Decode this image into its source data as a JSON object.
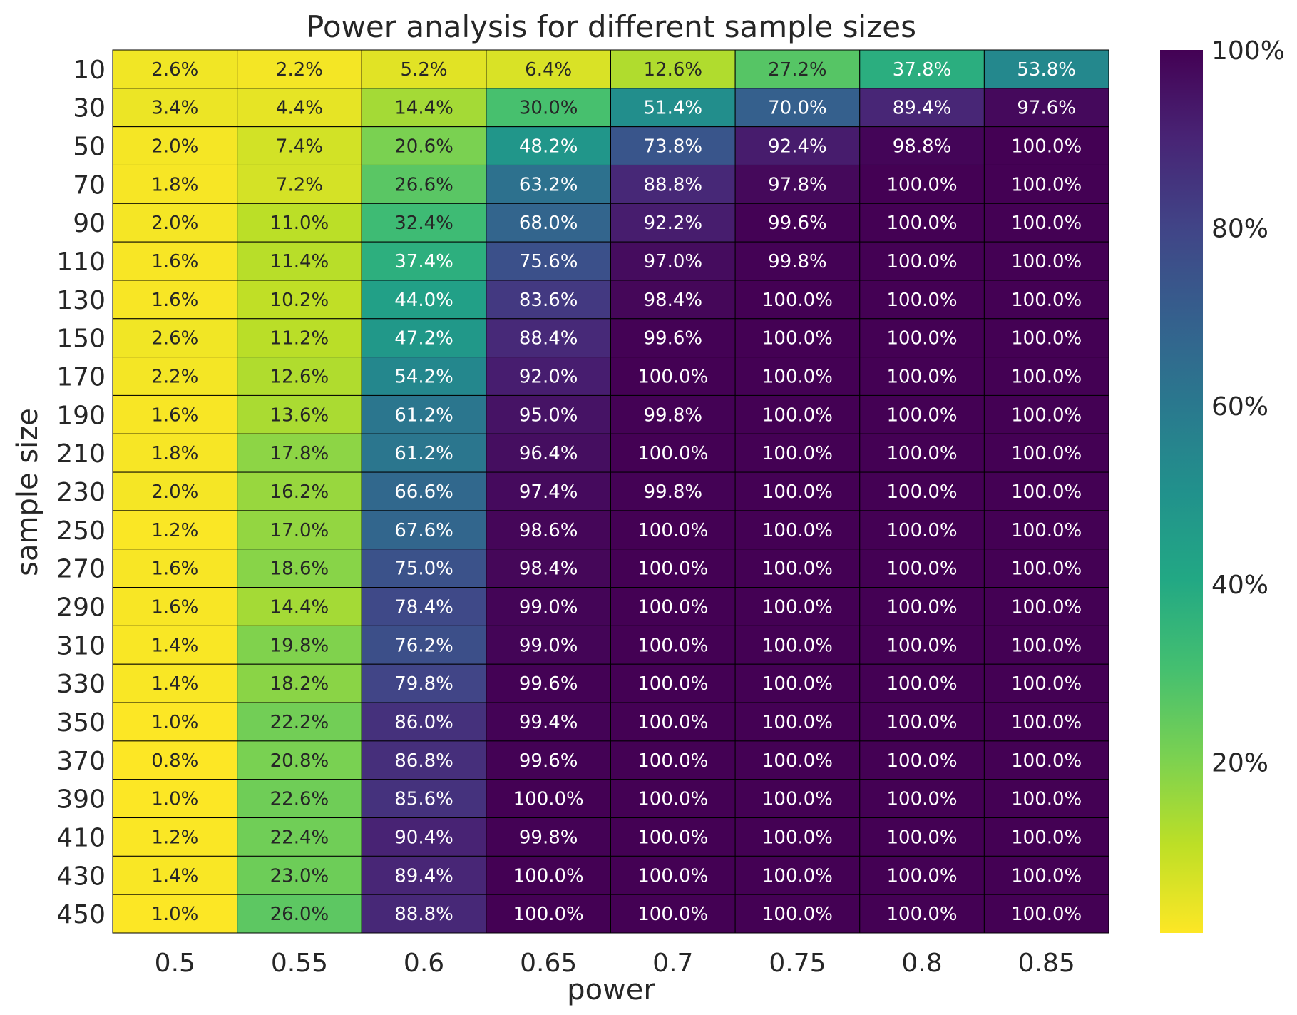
{
  "chart_data": {
    "type": "heatmap",
    "title": "Power analysis for different sample sizes",
    "xlabel": "power",
    "ylabel": "sample size",
    "x": [
      "0.5",
      "0.55",
      "0.6",
      "0.65",
      "0.7",
      "0.75",
      "0.8",
      "0.85"
    ],
    "y": [
      "10",
      "30",
      "50",
      "70",
      "90",
      "110",
      "130",
      "150",
      "170",
      "190",
      "210",
      "230",
      "250",
      "270",
      "290",
      "310",
      "330",
      "350",
      "370",
      "390",
      "410",
      "430",
      "450"
    ],
    "values": [
      [
        2.6,
        2.2,
        5.2,
        6.4,
        12.6,
        27.2,
        37.8,
        53.8
      ],
      [
        3.4,
        4.4,
        14.4,
        30.0,
        51.4,
        70.0,
        89.4,
        97.6
      ],
      [
        2.0,
        7.4,
        20.6,
        48.2,
        73.8,
        92.4,
        98.8,
        100.0
      ],
      [
        1.8,
        7.2,
        26.6,
        63.2,
        88.8,
        97.8,
        100.0,
        100.0
      ],
      [
        2.0,
        11.0,
        32.4,
        68.0,
        92.2,
        99.6,
        100.0,
        100.0
      ],
      [
        1.6,
        11.4,
        37.4,
        75.6,
        97.0,
        99.8,
        100.0,
        100.0
      ],
      [
        1.6,
        10.2,
        44.0,
        83.6,
        98.4,
        100.0,
        100.0,
        100.0
      ],
      [
        2.6,
        11.2,
        47.2,
        88.4,
        99.6,
        100.0,
        100.0,
        100.0
      ],
      [
        2.2,
        12.6,
        54.2,
        92.0,
        100.0,
        100.0,
        100.0,
        100.0
      ],
      [
        1.6,
        13.6,
        61.2,
        95.0,
        99.8,
        100.0,
        100.0,
        100.0
      ],
      [
        1.8,
        17.8,
        61.2,
        96.4,
        100.0,
        100.0,
        100.0,
        100.0
      ],
      [
        2.0,
        16.2,
        66.6,
        97.4,
        99.8,
        100.0,
        100.0,
        100.0
      ],
      [
        1.2,
        17.0,
        67.6,
        98.6,
        100.0,
        100.0,
        100.0,
        100.0
      ],
      [
        1.6,
        18.6,
        75.0,
        98.4,
        100.0,
        100.0,
        100.0,
        100.0
      ],
      [
        1.6,
        14.4,
        78.4,
        99.0,
        100.0,
        100.0,
        100.0,
        100.0
      ],
      [
        1.4,
        19.8,
        76.2,
        99.0,
        100.0,
        100.0,
        100.0,
        100.0
      ],
      [
        1.4,
        18.2,
        79.8,
        99.6,
        100.0,
        100.0,
        100.0,
        100.0
      ],
      [
        1.0,
        22.2,
        86.0,
        99.4,
        100.0,
        100.0,
        100.0,
        100.0
      ],
      [
        0.8,
        20.8,
        86.8,
        99.6,
        100.0,
        100.0,
        100.0,
        100.0
      ],
      [
        1.0,
        22.6,
        85.6,
        100.0,
        100.0,
        100.0,
        100.0,
        100.0
      ],
      [
        1.2,
        22.4,
        90.4,
        99.8,
        100.0,
        100.0,
        100.0,
        100.0
      ],
      [
        1.4,
        23.0,
        89.4,
        100.0,
        100.0,
        100.0,
        100.0,
        100.0
      ],
      [
        1.0,
        26.0,
        88.8,
        100.0,
        100.0,
        100.0,
        100.0,
        100.0
      ]
    ],
    "value_format": "percent with one decimal",
    "colormap": "viridis (reversed: low = yellow, high = dark purple)",
    "colorbar": {
      "ticks": [
        "20%",
        "40%",
        "60%",
        "80%",
        "100%"
      ],
      "tick_values": [
        20,
        40,
        60,
        80,
        100
      ],
      "range": [
        0.8,
        100.0
      ]
    },
    "grid": false
  },
  "colors": {
    "text": "#262626",
    "cell_border": "#000000",
    "light_label": "#ffffff",
    "dark_label": "#262626"
  }
}
